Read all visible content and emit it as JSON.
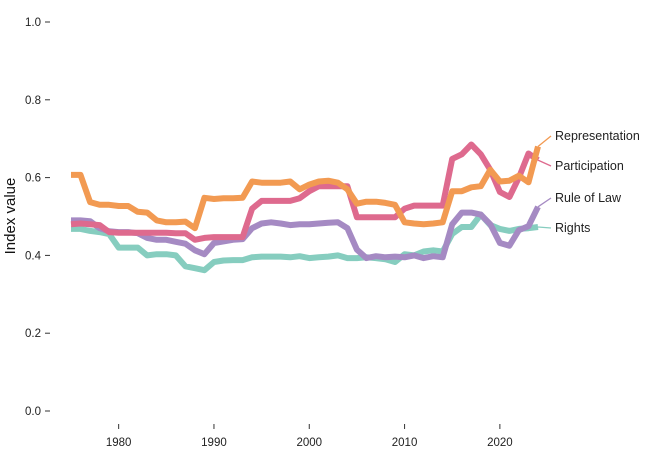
{
  "chart_data": {
    "type": "line",
    "title": "",
    "xlabel": "",
    "ylabel": "Index value",
    "xlim": [
      1975,
      2024
    ],
    "ylim": [
      0,
      1
    ],
    "x_ticks": [
      1980,
      1990,
      2000,
      2010,
      2020
    ],
    "y_ticks": [
      0,
      0.2,
      0.4,
      0.6,
      0.8,
      1.0
    ],
    "y_tick_labels": [
      "0.0",
      "0.2",
      "0.4",
      "0.6",
      "0.8",
      "1.0"
    ],
    "grid": false,
    "legend": "direct labels at line ends",
    "x": [
      1975,
      1976,
      1977,
      1978,
      1979,
      1980,
      1981,
      1982,
      1983,
      1984,
      1985,
      1986,
      1987,
      1988,
      1989,
      1990,
      1991,
      1992,
      1993,
      1994,
      1995,
      1996,
      1997,
      1998,
      1999,
      2000,
      2001,
      2002,
      2003,
      2004,
      2005,
      2006,
      2007,
      2008,
      2009,
      2010,
      2011,
      2012,
      2013,
      2014,
      2015,
      2016,
      2017,
      2018,
      2019,
      2020,
      2021,
      2022,
      2023,
      2024
    ],
    "series": [
      {
        "name": "Rights",
        "color": "#86CDBF",
        "values": [
          0.468,
          0.468,
          0.463,
          0.46,
          0.455,
          0.42,
          0.42,
          0.42,
          0.4,
          0.403,
          0.403,
          0.4,
          0.372,
          0.367,
          0.362,
          0.383,
          0.387,
          0.388,
          0.388,
          0.395,
          0.397,
          0.397,
          0.397,
          0.395,
          0.398,
          0.393,
          0.395,
          0.397,
          0.4,
          0.393,
          0.393,
          0.395,
          0.393,
          0.39,
          0.383,
          0.403,
          0.4,
          0.41,
          0.413,
          0.41,
          0.455,
          0.473,
          0.473,
          0.505,
          0.478,
          0.468,
          0.463,
          0.468,
          0.47,
          0.473
        ]
      },
      {
        "name": "Rule of Law",
        "color": "#A58AC3",
        "values": [
          0.49,
          0.49,
          0.488,
          0.47,
          0.462,
          0.46,
          0.46,
          0.457,
          0.445,
          0.44,
          0.44,
          0.435,
          0.43,
          0.413,
          0.403,
          0.432,
          0.436,
          0.44,
          0.442,
          0.47,
          0.482,
          0.485,
          0.482,
          0.478,
          0.48,
          0.48,
          0.482,
          0.484,
          0.485,
          0.47,
          0.415,
          0.393,
          0.398,
          0.395,
          0.397,
          0.395,
          0.4,
          0.393,
          0.398,
          0.395,
          0.48,
          0.51,
          0.51,
          0.505,
          0.48,
          0.432,
          0.425,
          0.465,
          0.475,
          0.525
        ]
      },
      {
        "name": "Participation",
        "color": "#DE6A8E",
        "values": [
          0.48,
          0.482,
          0.48,
          0.478,
          0.46,
          0.458,
          0.458,
          0.458,
          0.458,
          0.458,
          0.458,
          0.457,
          0.457,
          0.44,
          0.445,
          0.447,
          0.447,
          0.447,
          0.447,
          0.52,
          0.54,
          0.54,
          0.54,
          0.54,
          0.547,
          0.565,
          0.578,
          0.578,
          0.578,
          0.578,
          0.498,
          0.498,
          0.498,
          0.498,
          0.498,
          0.52,
          0.528,
          0.528,
          0.528,
          0.528,
          0.648,
          0.66,
          0.685,
          0.66,
          0.62,
          0.563,
          0.55,
          0.6,
          0.662,
          0.645
        ]
      },
      {
        "name": "Representation",
        "color": "#F29A52",
        "values": [
          0.607,
          0.607,
          0.537,
          0.53,
          0.53,
          0.527,
          0.527,
          0.512,
          0.51,
          0.49,
          0.485,
          0.485,
          0.487,
          0.47,
          0.548,
          0.545,
          0.547,
          0.547,
          0.548,
          0.59,
          0.587,
          0.587,
          0.587,
          0.59,
          0.57,
          0.582,
          0.59,
          0.592,
          0.587,
          0.57,
          0.533,
          0.538,
          0.538,
          0.535,
          0.53,
          0.485,
          0.482,
          0.48,
          0.482,
          0.485,
          0.565,
          0.565,
          0.575,
          0.578,
          0.62,
          0.59,
          0.592,
          0.605,
          0.588,
          0.68
        ]
      }
    ],
    "end_labels": [
      {
        "series": "Representation",
        "text": "Representation"
      },
      {
        "series": "Participation",
        "text": "Participation"
      },
      {
        "series": "Rule of Law",
        "text": "Rule of Law"
      },
      {
        "series": "Rights",
        "text": "Rights"
      }
    ]
  }
}
